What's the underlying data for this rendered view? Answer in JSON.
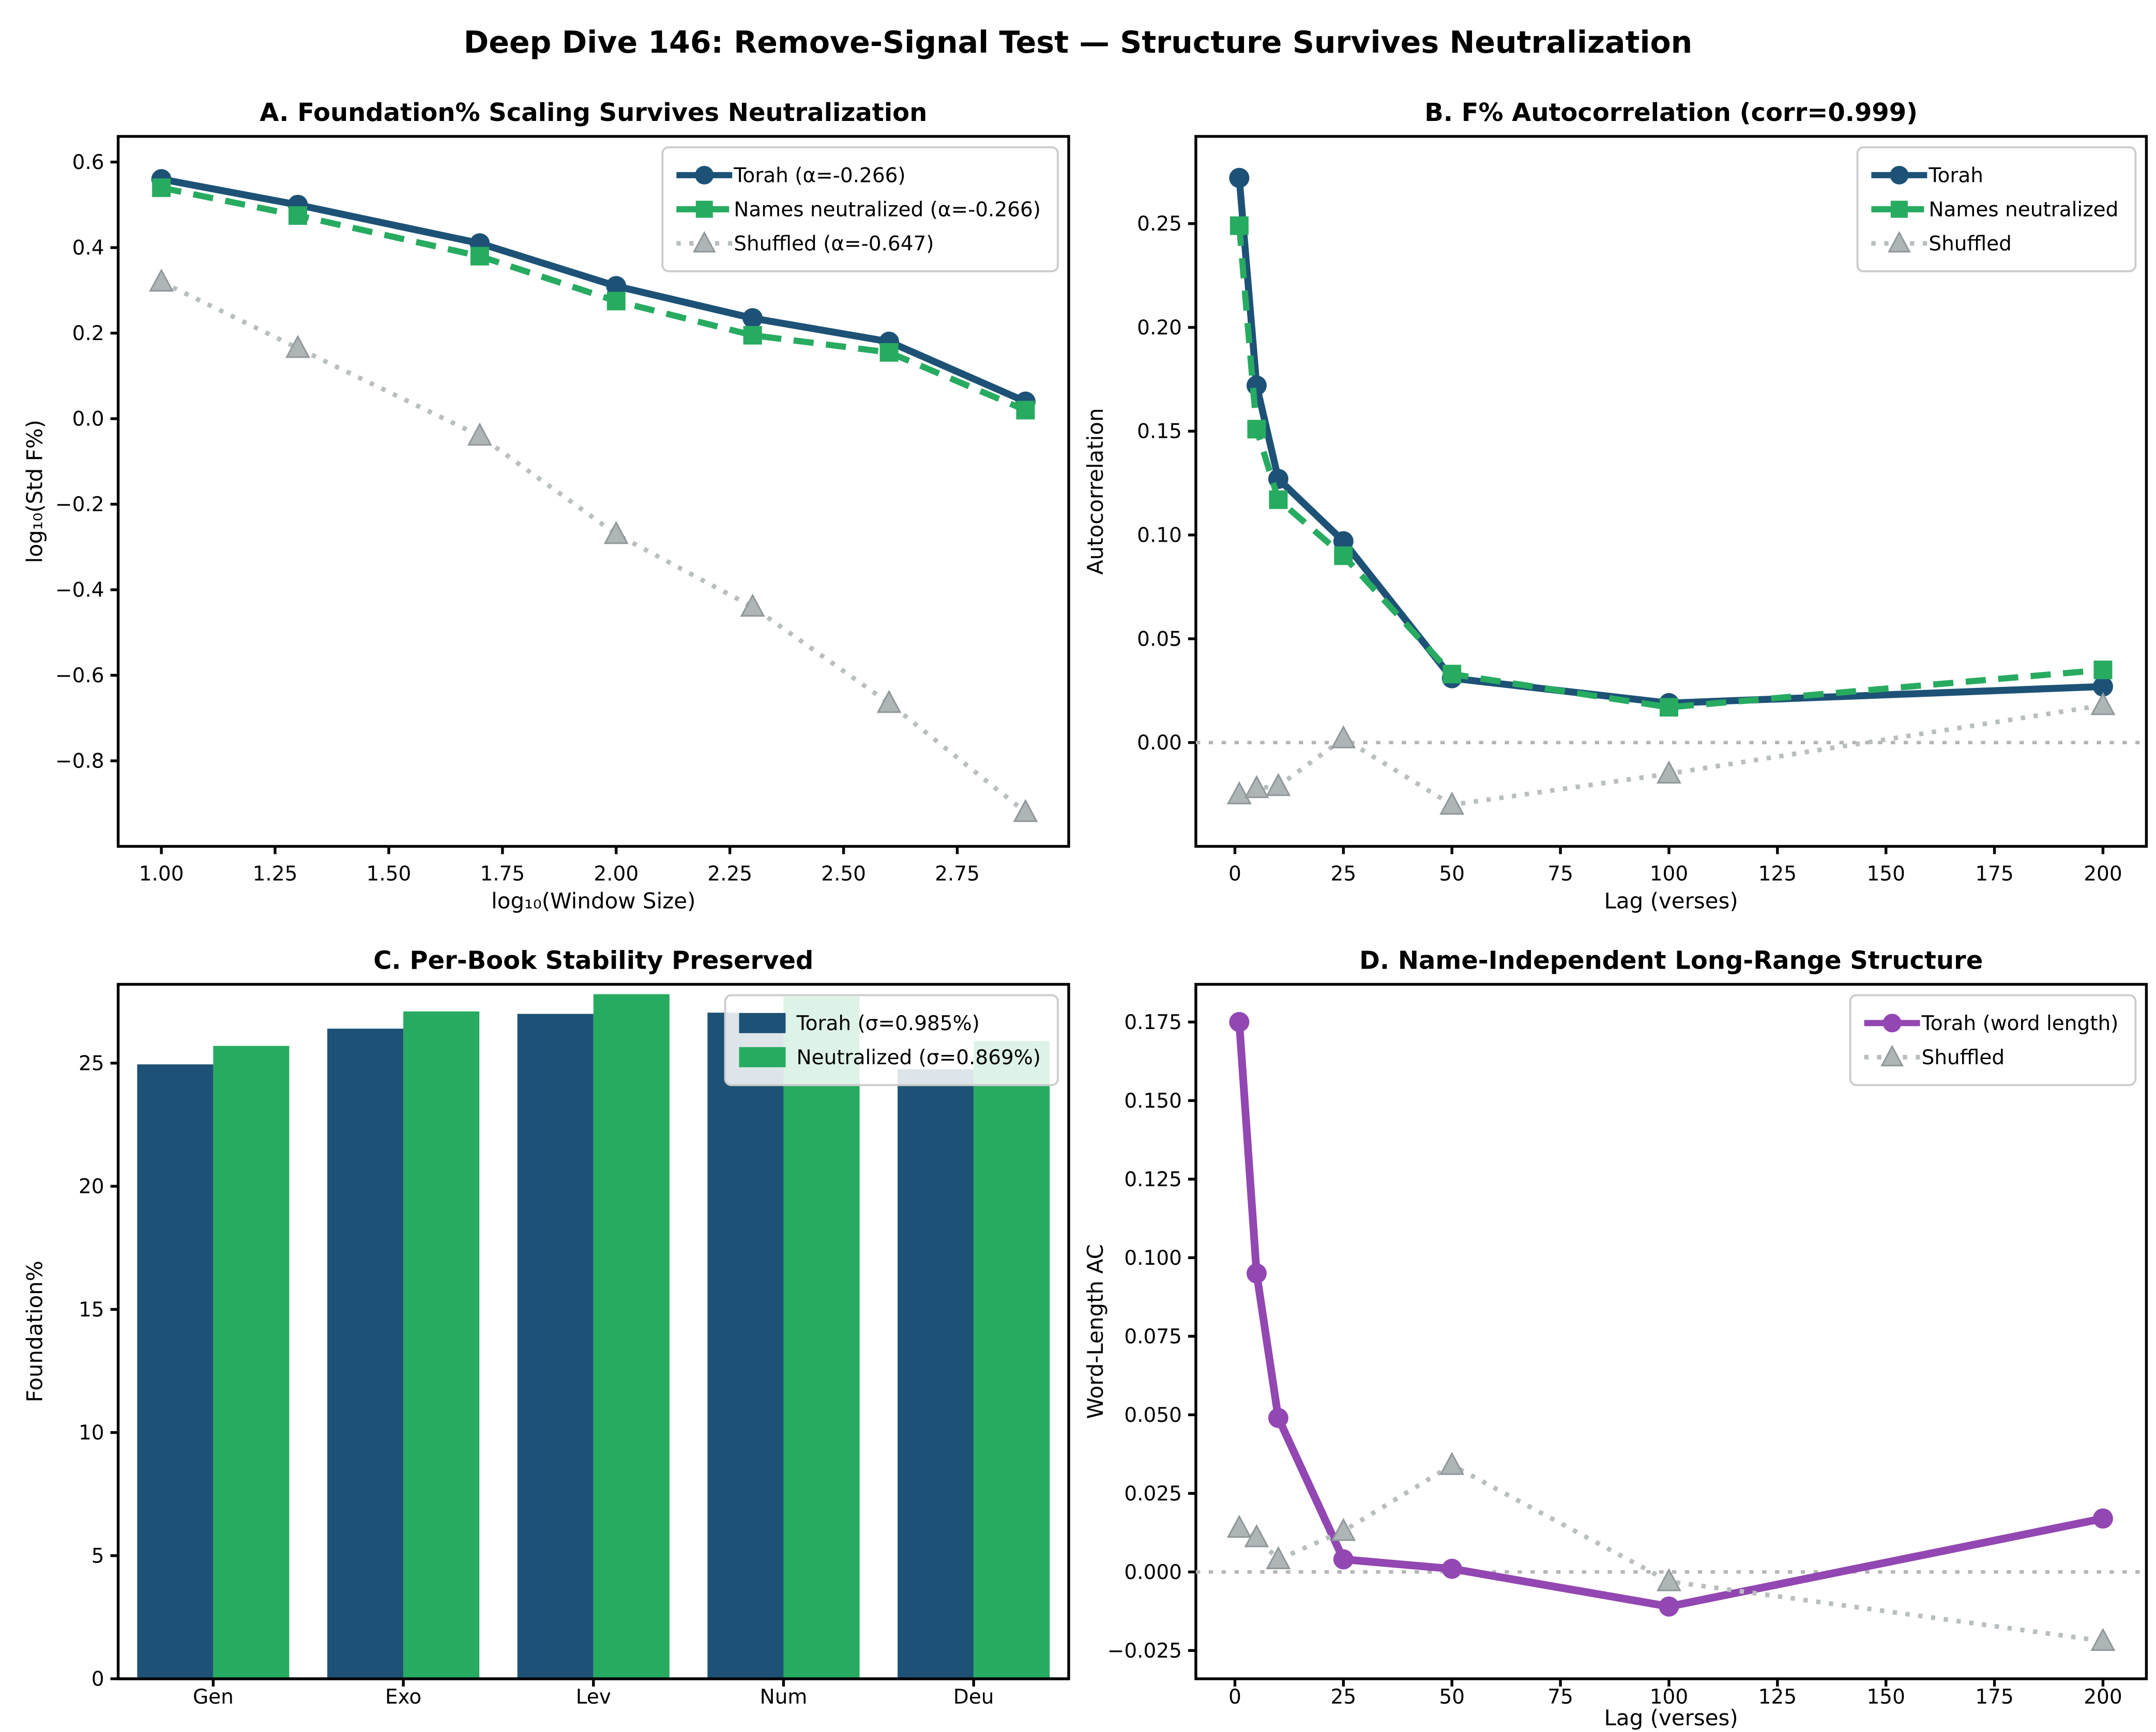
{
  "figure": {
    "suptitle": "Deep Dive 146: Remove-Signal Test — Structure Survives Neutralization",
    "background": "#ffffff"
  },
  "colors": {
    "torah_blue": "#1d5276",
    "neutralized_green": "#27ab60",
    "shuffled_gray_line": "#b9bfc1",
    "shuffled_gray_marker": "#aeb5b7",
    "shuffled_marker_edge": "#8f9799",
    "torah_purple": "#9247b2",
    "zero_line": "#b5b5b5",
    "axis": "#000000",
    "legend_border": "#cccccc"
  },
  "chart_data": [
    {
      "id": "A",
      "type": "line",
      "title": "A. Foundation% Scaling Survives Neutralization",
      "xlabel": "log₁₀(Window Size)",
      "ylabel": "log₁₀(Std F%)",
      "xlim": [
        0.905,
        2.995
      ],
      "ylim": [
        -1.0,
        0.66
      ],
      "xtick_vals": [
        1.0,
        1.25,
        1.5,
        1.75,
        2.0,
        2.25,
        2.5,
        2.75
      ],
      "xtick_labels": [
        "1.00",
        "1.25",
        "1.50",
        "1.75",
        "2.00",
        "2.25",
        "2.50",
        "2.75"
      ],
      "ytick_vals": [
        0.6,
        0.4,
        0.2,
        0.0,
        -0.2,
        -0.4,
        -0.6,
        -0.8
      ],
      "ytick_labels": [
        "0.6",
        "0.4",
        "0.2",
        "0.0",
        "−0.2",
        "−0.4",
        "−0.6",
        "−0.8"
      ],
      "zero_line": false,
      "legend_position": "upper right",
      "series": [
        {
          "name": "Torah (α=-0.266)",
          "color": "#1d5276",
          "dash": "solid",
          "marker": "circle",
          "width": 4.5,
          "x": [
            1.0,
            1.3,
            1.7,
            2.0,
            2.3,
            2.6,
            2.9
          ],
          "y": [
            0.56,
            0.5,
            0.41,
            0.31,
            0.235,
            0.18,
            0.04
          ]
        },
        {
          "name": "Names neutralized (α=-0.266)",
          "color": "#27ab60",
          "dash": "dashed",
          "marker": "square",
          "width": 4,
          "x": [
            1.0,
            1.3,
            1.7,
            2.0,
            2.3,
            2.6,
            2.9
          ],
          "y": [
            0.54,
            0.475,
            0.38,
            0.275,
            0.195,
            0.155,
            0.02
          ]
        },
        {
          "name": "Shuffled (α=-0.647)",
          "color": "#b9bfc1",
          "dash": "dotted",
          "marker": "triangle",
          "width": 3,
          "x": [
            1.0,
            1.3,
            1.7,
            2.0,
            2.3,
            2.6,
            2.9
          ],
          "y": [
            0.32,
            0.165,
            -0.04,
            -0.27,
            -0.44,
            -0.665,
            -0.92
          ]
        }
      ]
    },
    {
      "id": "B",
      "type": "line",
      "title": "B. F% Autocorrelation (corr=0.999)",
      "xlabel": "Lag (verses)",
      "ylabel": "Autocorrelation",
      "xlim": [
        -9,
        210
      ],
      "ylim": [
        -0.05,
        0.292
      ],
      "xtick_vals": [
        0,
        25,
        50,
        75,
        100,
        125,
        150,
        175,
        200
      ],
      "xtick_labels": [
        "0",
        "25",
        "50",
        "75",
        "100",
        "125",
        "150",
        "175",
        "200"
      ],
      "ytick_vals": [
        0.0,
        0.05,
        0.1,
        0.15,
        0.2,
        0.25
      ],
      "ytick_labels": [
        "0.00",
        "0.05",
        "0.10",
        "0.15",
        "0.20",
        "0.25"
      ],
      "zero_line": true,
      "legend_position": "upper right",
      "series": [
        {
          "name": "Torah",
          "color": "#1d5276",
          "dash": "solid",
          "marker": "circle",
          "width": 4.5,
          "x": [
            1,
            5,
            10,
            25,
            50,
            100,
            200
          ],
          "y": [
            0.272,
            0.172,
            0.127,
            0.097,
            0.031,
            0.019,
            0.027
          ]
        },
        {
          "name": "Names neutralized",
          "color": "#27ab60",
          "dash": "dashed",
          "marker": "square",
          "width": 4,
          "x": [
            1,
            5,
            10,
            25,
            50,
            100,
            200
          ],
          "y": [
            0.249,
            0.151,
            0.117,
            0.09,
            0.033,
            0.017,
            0.035
          ]
        },
        {
          "name": "Shuffled",
          "color": "#b9bfc1",
          "dash": "dotted",
          "marker": "triangle",
          "width": 3,
          "x": [
            1,
            5,
            10,
            25,
            50,
            100,
            200
          ],
          "y": [
            -0.025,
            -0.022,
            -0.021,
            0.002,
            -0.03,
            -0.015,
            0.018
          ]
        }
      ]
    },
    {
      "id": "C",
      "type": "bar",
      "title": "C. Per-Book Stability Preserved",
      "xlabel": "",
      "ylabel": "Foundation%",
      "categories": [
        "Gen",
        "Exo",
        "Lev",
        "Num",
        "Deu"
      ],
      "ylim": [
        0,
        28.2
      ],
      "ytick_vals": [
        0,
        5,
        10,
        15,
        20,
        25
      ],
      "ytick_labels": [
        "0",
        "5",
        "10",
        "15",
        "20",
        "25"
      ],
      "legend_position": "upper right",
      "series": [
        {
          "name": "Torah (σ=0.985%)",
          "color": "#1d5276",
          "values": [
            24.95,
            26.4,
            27.0,
            27.05,
            24.75
          ]
        },
        {
          "name": "Neutralized (σ=0.869%)",
          "color": "#27ab60",
          "values": [
            25.7,
            27.1,
            27.8,
            27.7,
            25.9
          ]
        }
      ]
    },
    {
      "id": "D",
      "type": "line",
      "title": "D. Name-Independent Long-Range Structure",
      "xlabel": "Lag (verses)",
      "ylabel": "Word-Length AC",
      "xlim": [
        -9,
        210
      ],
      "ylim": [
        -0.034,
        0.187
      ],
      "xtick_vals": [
        0,
        25,
        50,
        75,
        100,
        125,
        150,
        175,
        200
      ],
      "xtick_labels": [
        "0",
        "25",
        "50",
        "75",
        "100",
        "125",
        "150",
        "175",
        "200"
      ],
      "ytick_vals": [
        -0.025,
        0.0,
        0.025,
        0.05,
        0.075,
        0.1,
        0.125,
        0.15,
        0.175
      ],
      "ytick_labels": [
        "−0.025",
        "0.000",
        "0.025",
        "0.050",
        "0.075",
        "0.100",
        "0.125",
        "0.150",
        "0.175"
      ],
      "zero_line": true,
      "legend_position": "upper right",
      "series": [
        {
          "name": "Torah (word length)",
          "color": "#9247b2",
          "dash": "solid",
          "marker": "circle",
          "width": 5,
          "x": [
            1,
            5,
            10,
            25,
            50,
            100,
            200
          ],
          "y": [
            0.175,
            0.095,
            0.049,
            0.004,
            0.001,
            -0.011,
            0.017
          ]
        },
        {
          "name": "Shuffled",
          "color": "#b9bfc1",
          "dash": "dotted",
          "marker": "triangle",
          "width": 3,
          "x": [
            1,
            5,
            10,
            25,
            50,
            100,
            200
          ],
          "y": [
            0.014,
            0.011,
            0.004,
            0.013,
            0.034,
            -0.003,
            -0.022
          ]
        }
      ]
    }
  ]
}
